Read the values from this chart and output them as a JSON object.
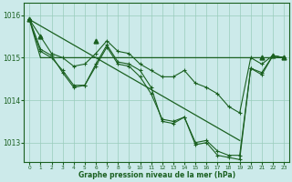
{
  "title": "Graphe pression niveau de la mer (hPa)",
  "bg_color": "#cceaea",
  "grid_color": "#99ccbb",
  "line_color": "#1a6020",
  "xlim": [
    -0.5,
    23.5
  ],
  "ylim": [
    1012.55,
    1016.3
  ],
  "yticks": [
    1013,
    1014,
    1015,
    1016
  ],
  "xticks": [
    0,
    1,
    2,
    3,
    4,
    5,
    6,
    7,
    8,
    9,
    10,
    11,
    12,
    13,
    14,
    15,
    16,
    17,
    18,
    19,
    20,
    21,
    22,
    23
  ],
  "hours": [
    0,
    1,
    2,
    3,
    4,
    5,
    6,
    7,
    8,
    9,
    10,
    11,
    12,
    13,
    14,
    15,
    16,
    17,
    18,
    19,
    20,
    21,
    22,
    23
  ],
  "trend_line": [
    1015.9,
    1015.75,
    1015.6,
    1015.45,
    1015.3,
    1015.15,
    1015.0,
    1014.85,
    1014.7,
    1014.55,
    1014.4,
    1014.25,
    1014.1,
    1013.95,
    1013.8,
    1013.65,
    1013.5,
    1013.35,
    1013.2,
    1013.05,
    1015.0,
    1015.0,
    1015.0,
    1015.0
  ],
  "flat_line": [
    1015.9,
    1015.0,
    1015.0,
    1015.0,
    1015.0,
    1015.0,
    1015.0,
    1015.0,
    1015.0,
    1015.0,
    1015.0,
    1015.0,
    1015.0,
    1015.0,
    1015.0,
    1015.0,
    1015.0,
    1015.0,
    1015.0,
    1015.0,
    1015.0,
    1015.0,
    1015.0,
    1015.0
  ],
  "series_a": [
    1015.9,
    1015.5,
    1015.1,
    1015.0,
    1014.8,
    1014.85,
    1015.1,
    1015.4,
    1015.15,
    1015.1,
    1014.85,
    1014.7,
    1014.55,
    1014.55,
    1014.7,
    1014.4,
    1014.3,
    1014.15,
    1013.85,
    1013.7,
    1015.0,
    1014.85,
    1015.05,
    1015.0
  ],
  "series_b": [
    1015.9,
    1015.2,
    1015.05,
    1014.65,
    1014.3,
    1014.35,
    1014.8,
    1015.25,
    1014.85,
    1014.8,
    1014.55,
    1014.15,
    1013.55,
    1013.5,
    1013.6,
    1013.0,
    1013.05,
    1012.8,
    1012.7,
    1012.7,
    1014.75,
    1014.65,
    1015.05,
    1015.0
  ],
  "series_c": [
    1015.9,
    1015.15,
    1015.0,
    1014.7,
    1014.35,
    1014.35,
    1014.85,
    1015.3,
    1014.9,
    1014.85,
    1014.7,
    1014.3,
    1013.5,
    1013.45,
    1013.6,
    1012.95,
    1013.0,
    1012.7,
    1012.65,
    1012.6,
    1014.75,
    1014.6,
    1015.05,
    1015.0
  ],
  "tri_hours": [
    0,
    1,
    6,
    21,
    22,
    23
  ],
  "tri_values": [
    1015.9,
    1015.5,
    1015.4,
    1015.0,
    1015.05,
    1015.0
  ]
}
